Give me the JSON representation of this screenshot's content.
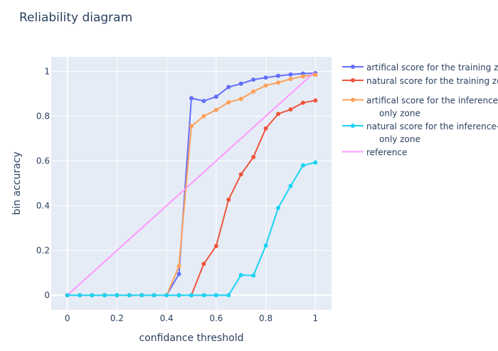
{
  "chart_data": {
    "type": "line",
    "title": "Reliability diagram",
    "xlabel": "confidance threshold",
    "ylabel": "bin accuracy",
    "xlim": [
      -0.065,
      1.065
    ],
    "ylim": [
      -0.065,
      1.065
    ],
    "xticks": [
      0,
      0.2,
      0.4,
      0.6,
      0.8,
      1
    ],
    "yticks": [
      0,
      0.2,
      0.4,
      0.6,
      0.8,
      1
    ],
    "xtick_labels": [
      "0",
      "0.2",
      "0.4",
      "0.6",
      "0.8",
      "1"
    ],
    "ytick_labels": [
      "0",
      "0.2",
      "0.4",
      "0.6",
      "0.8",
      "1"
    ],
    "grid": true,
    "legend_position": "right",
    "background": "#e5ecf6",
    "series": [
      {
        "name": "artifical score for the training zone",
        "legend_lines": [
          "artifical score for the training zone"
        ],
        "color": "#636efa",
        "markers": true,
        "x": [
          0,
          0.05,
          0.1,
          0.15,
          0.2,
          0.25,
          0.3,
          0.35,
          0.4,
          0.45,
          0.5,
          0.55,
          0.6,
          0.65,
          0.7,
          0.75,
          0.8,
          0.85,
          0.9,
          0.95,
          1
        ],
        "y": [
          0,
          0,
          0,
          0,
          0,
          0,
          0,
          0,
          0,
          0.095,
          0.88,
          0.868,
          0.887,
          0.93,
          0.945,
          0.963,
          0.972,
          0.98,
          0.986,
          0.99,
          0.992
        ]
      },
      {
        "name": "natural score for the training zone",
        "legend_lines": [
          "natural score for the training zone"
        ],
        "color": "#ef553b",
        "markers": true,
        "x": [
          0,
          0.05,
          0.1,
          0.15,
          0.2,
          0.25,
          0.3,
          0.35,
          0.4,
          0.45,
          0.5,
          0.55,
          0.6,
          0.65,
          0.7,
          0.75,
          0.8,
          0.85,
          0.9,
          0.95,
          1
        ],
        "y": [
          0,
          0,
          0,
          0,
          0,
          0,
          0,
          0,
          0,
          0,
          0,
          0.14,
          0.22,
          0.427,
          0.54,
          0.617,
          0.745,
          0.81,
          0.83,
          0.86,
          0.87
        ]
      },
      {
        "name": "artifical score for the inference-only zone",
        "legend_lines": [
          "artifical score for the inference-",
          "only zone"
        ],
        "color": "#fba15a",
        "markers": true,
        "x": [
          0,
          0.05,
          0.1,
          0.15,
          0.2,
          0.25,
          0.3,
          0.35,
          0.4,
          0.45,
          0.5,
          0.55,
          0.6,
          0.65,
          0.7,
          0.75,
          0.8,
          0.85,
          0.9,
          0.95,
          1
        ],
        "y": [
          0,
          0,
          0,
          0,
          0,
          0,
          0,
          0,
          0,
          0.13,
          0.755,
          0.8,
          0.828,
          0.862,
          0.877,
          0.91,
          0.937,
          0.95,
          0.966,
          0.978,
          0.985
        ]
      },
      {
        "name": "natural score for the inference-only zone",
        "legend_lines": [
          "natural score for the inference-",
          "only zone"
        ],
        "color": "#19d3f3",
        "markers": true,
        "x": [
          0,
          0.05,
          0.1,
          0.15,
          0.2,
          0.25,
          0.3,
          0.35,
          0.4,
          0.45,
          0.5,
          0.55,
          0.6,
          0.65,
          0.7,
          0.75,
          0.8,
          0.85,
          0.9,
          0.95,
          1
        ],
        "y": [
          0,
          0,
          0,
          0,
          0,
          0,
          0,
          0,
          0,
          0,
          0,
          0,
          0,
          0,
          0.09,
          0.088,
          0.222,
          0.39,
          0.488,
          0.58,
          0.593
        ]
      },
      {
        "name": "reference",
        "legend_lines": [
          "reference"
        ],
        "color": "#ff97ff",
        "markers": false,
        "x": [
          0,
          1
        ],
        "y": [
          0,
          1
        ]
      }
    ]
  }
}
